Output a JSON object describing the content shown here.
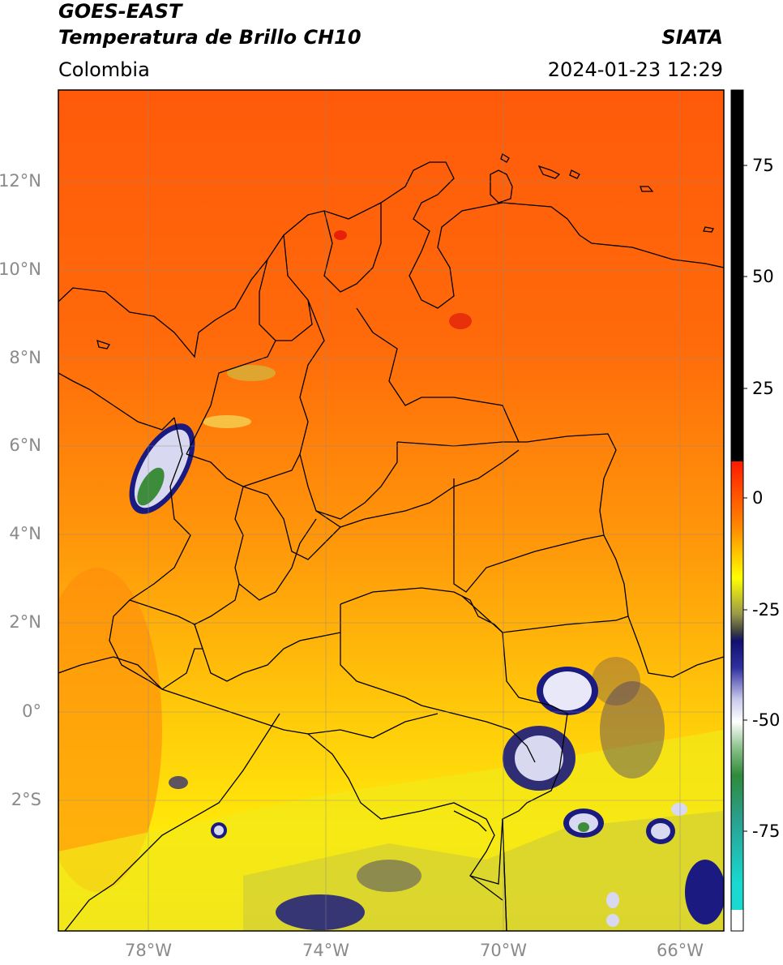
{
  "header": {
    "title_line1": "GOES-EAST",
    "title_line2": "Temperatura de Brillo CH10",
    "organization": "SIATA",
    "region": "Colombia",
    "timestamp": "2024-01-23 12:29"
  },
  "map": {
    "lat_labels": [
      "12°N",
      "10°N",
      "8°N",
      "6°N",
      "4°N",
      "2°N",
      "0°",
      "2°S"
    ],
    "lon_labels": [
      "78°W",
      "74°W",
      "70°W",
      "66°W"
    ],
    "background_colors": {
      "warm": "#ff5a0a",
      "mid": "#ff9a0a",
      "cool": "#ffe20a"
    },
    "cloud_colors": [
      "#1a1a80",
      "#d8d8f0",
      "#3c8c3c",
      "#ffffff"
    ]
  },
  "colorbar": {
    "tick_labels": [
      "75",
      "50",
      "25",
      "0",
      "-25",
      "-50",
      "-75"
    ],
    "colors": {
      "black": "#000000",
      "red": "#ff1a00",
      "orange": "#ff8c00",
      "yellow": "#ffff00",
      "olive": "#9a9a4a",
      "navy": "#101070",
      "lavender": "#c8c8ec",
      "white": "#ffffff",
      "green": "#2e8b3a",
      "cyan": "#19d9d0"
    }
  }
}
